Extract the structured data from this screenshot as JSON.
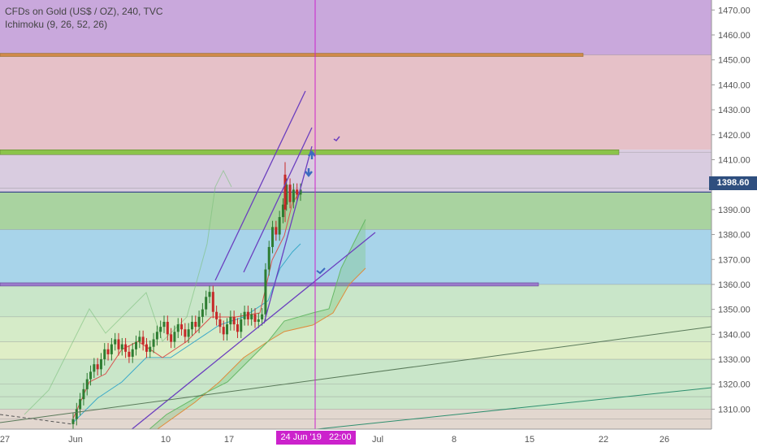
{
  "header": {
    "symbol": "CFDs on Gold (US$ / OZ), 240, TVC",
    "indicator": "Ichimoku (9, 26, 52, 26)"
  },
  "current_price": "1398.60",
  "cursor_time": {
    "date": "24 Jun '19",
    "time": "22:00"
  },
  "chart_data": {
    "type": "line",
    "title": "CFDs on Gold (US$ / OZ), 240, TVC",
    "ylim": [
      1302,
      1474
    ],
    "y_ticks": [
      1310,
      1320,
      1330,
      1340,
      1350,
      1360,
      1370,
      1380,
      1390,
      1400,
      1410,
      1420,
      1430,
      1440,
      1450,
      1460,
      1470
    ],
    "x_ticks": [
      "27",
      "Jun",
      "10",
      "17",
      "24 Jun '19",
      "Jul",
      "8",
      "15",
      "22",
      "26"
    ],
    "zones": [
      {
        "from": 1452,
        "to": 1474,
        "color": "#c9a8dc"
      },
      {
        "from": 1414,
        "to": 1452,
        "color": "#e6c1c8"
      },
      {
        "from": 1397,
        "to": 1414,
        "color": "#d9cce0"
      },
      {
        "from": 1382,
        "to": 1397,
        "color": "#a9d3a0"
      },
      {
        "from": 1360,
        "to": 1382,
        "color": "#a8d4ea"
      },
      {
        "from": 1347,
        "to": 1360,
        "color": "#c9e6c9"
      },
      {
        "from": 1337,
        "to": 1347,
        "color": "#d5ebc8"
      },
      {
        "from": 1330,
        "to": 1337,
        "color": "#dfeec6"
      },
      {
        "from": 1310,
        "to": 1330,
        "color": "#c9e6c9"
      },
      {
        "from": 1302,
        "to": 1310,
        "color": "#e2d7cf"
      }
    ],
    "levels": [
      1452,
      1413,
      1398.6,
      1397,
      1382,
      1360,
      1347,
      1337,
      1330,
      1320,
      1315,
      1310,
      1306
    ],
    "annotations": [
      "up-arrow",
      "down-arrow",
      "check",
      "check"
    ]
  }
}
